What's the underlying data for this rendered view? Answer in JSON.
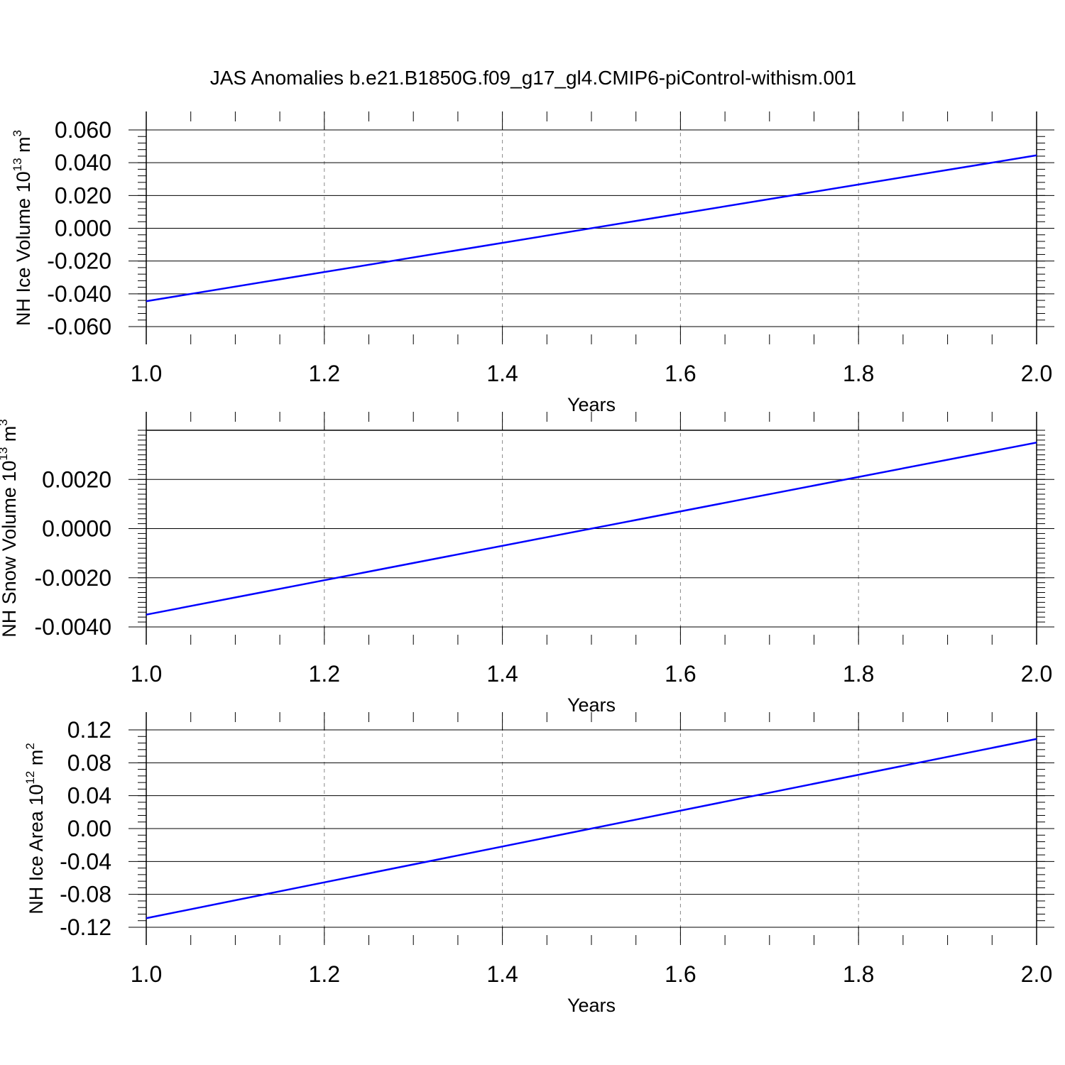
{
  "title": "JAS Anomalies b.e21.B1850G.f09_g17_gl4.CMIP6-piControl-withism.001",
  "chart_data": [
    {
      "type": "line",
      "ylabel_text": "NH Ice Volume 10",
      "ylabel_exp": "13",
      "ylabel_unit": " m",
      "ylabel_unit_exp": "3",
      "xlabel": "Years",
      "xlim": [
        1.0,
        2.0
      ],
      "ylim": [
        -0.06,
        0.06
      ],
      "xticks": [
        "1.0",
        "1.2",
        "1.4",
        "1.6",
        "1.8",
        "2.0"
      ],
      "yticks": [
        "0.060",
        "0.040",
        "0.020",
        "0.000",
        "-0.020",
        "-0.040",
        "-0.060"
      ],
      "grid": "vertical dashed",
      "series": [
        {
          "x": [
            1.0,
            2.0
          ],
          "y": [
            -0.0445,
            0.0445
          ],
          "color": "#0000ff"
        }
      ]
    },
    {
      "type": "line",
      "ylabel_text": "NH Snow Volume 10",
      "ylabel_exp": "13",
      "ylabel_unit": " m",
      "ylabel_unit_exp": "3",
      "xlabel": "Years",
      "xlim": [
        1.0,
        2.0
      ],
      "ylim": [
        -0.004,
        0.004
      ],
      "xticks": [
        "1.0",
        "1.2",
        "1.4",
        "1.6",
        "1.8",
        "2.0"
      ],
      "yticks": [
        "0.0020",
        "0.0000",
        "-0.0020",
        "-0.0040"
      ],
      "grid": "vertical dashed",
      "series": [
        {
          "x": [
            1.0,
            2.0
          ],
          "y": [
            -0.0035,
            0.0035
          ],
          "color": "#0000ff"
        }
      ]
    },
    {
      "type": "line",
      "ylabel_text": "NH Ice Area 10",
      "ylabel_exp": "12",
      "ylabel_unit": " m",
      "ylabel_unit_exp": "2",
      "xlabel": "Years",
      "xlim": [
        1.0,
        2.0
      ],
      "ylim": [
        -0.12,
        0.12
      ],
      "xticks": [
        "1.0",
        "1.2",
        "1.4",
        "1.6",
        "1.8",
        "2.0"
      ],
      "yticks": [
        "0.12",
        "0.08",
        "0.04",
        "0.00",
        "-0.04",
        "-0.08",
        "-0.12"
      ],
      "grid": "vertical dashed",
      "series": [
        {
          "x": [
            1.0,
            2.0
          ],
          "y": [
            -0.109,
            0.109
          ],
          "color": "#0000ff"
        }
      ]
    }
  ]
}
